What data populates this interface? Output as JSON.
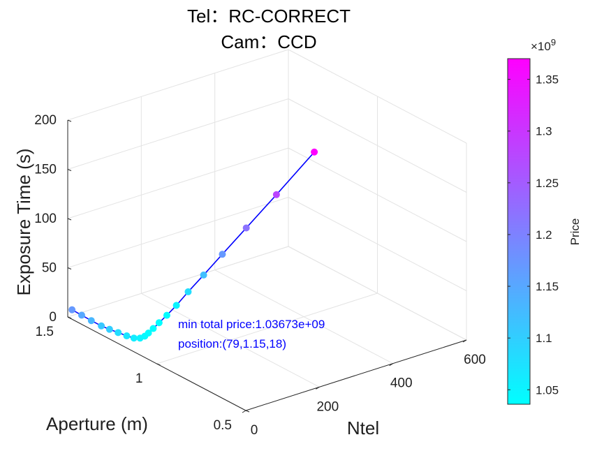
{
  "chart_data": {
    "type": "scatter",
    "title_lines": [
      "Tel：RC-CORRECT",
      "Cam：CCD"
    ],
    "xlabel": "Ntel",
    "ylabel": "Aperture (m)",
    "zlabel": "Exposure Time (s)",
    "xlim": [
      0,
      600
    ],
    "ylim": [
      0.5,
      1.5
    ],
    "zlim": [
      0,
      200
    ],
    "x_ticks": [
      "0",
      "200",
      "400",
      "600"
    ],
    "y_ticks": [
      "0.5",
      "1",
      "1.5"
    ],
    "z_ticks": [
      "0",
      "50",
      "100",
      "150",
      "200"
    ],
    "grid": true,
    "colorbar": {
      "label": "Price",
      "exponent_label": "×10",
      "exponent_power": "9",
      "range": [
        1.036,
        1.37
      ],
      "ticks": [
        "1.05",
        "1.1",
        "1.15",
        "1.2",
        "1.25",
        "1.3",
        "1.35"
      ],
      "colormap": [
        "#00ffff",
        "#ff00ff"
      ]
    },
    "line_color": "#0000ff",
    "points": [
      {
        "x": 2,
        "y": 1.48,
        "z": 9,
        "price": 1.17
      },
      {
        "x": 4,
        "y": 1.43,
        "z": 8,
        "price": 1.15
      },
      {
        "x": 6,
        "y": 1.38,
        "z": 7,
        "price": 1.13
      },
      {
        "x": 9,
        "y": 1.33,
        "z": 6,
        "price": 1.11
      },
      {
        "x": 12,
        "y": 1.29,
        "z": 6,
        "price": 1.1
      },
      {
        "x": 16,
        "y": 1.25,
        "z": 6,
        "price": 1.08
      },
      {
        "x": 20,
        "y": 1.21,
        "z": 6,
        "price": 1.07
      },
      {
        "x": 25,
        "y": 1.18,
        "z": 6,
        "price": 1.06
      },
      {
        "x": 32,
        "y": 1.16,
        "z": 7,
        "price": 1.05
      },
      {
        "x": 40,
        "y": 1.15,
        "z": 9,
        "price": 1.045
      },
      {
        "x": 50,
        "y": 1.15,
        "z": 11,
        "price": 1.04
      },
      {
        "x": 63,
        "y": 1.15,
        "z": 14,
        "price": 1.038
      },
      {
        "x": 79,
        "y": 1.15,
        "z": 18,
        "price": 1.037
      },
      {
        "x": 100,
        "y": 1.15,
        "z": 23,
        "price": 1.038
      },
      {
        "x": 126,
        "y": 1.15,
        "z": 30,
        "price": 1.05
      },
      {
        "x": 158,
        "y": 1.15,
        "z": 40,
        "price": 1.08
      },
      {
        "x": 200,
        "y": 1.15,
        "z": 52,
        "price": 1.12
      },
      {
        "x": 251,
        "y": 1.15,
        "z": 67,
        "price": 1.17
      },
      {
        "x": 316,
        "y": 1.15,
        "z": 86,
        "price": 1.22
      },
      {
        "x": 398,
        "y": 1.15,
        "z": 110,
        "price": 1.28
      },
      {
        "x": 501,
        "y": 1.15,
        "z": 141,
        "price": 1.37
      }
    ],
    "annotation": {
      "line1": "min total price:1.03673e+09",
      "line2": "position:(79,1.15,18)"
    }
  }
}
